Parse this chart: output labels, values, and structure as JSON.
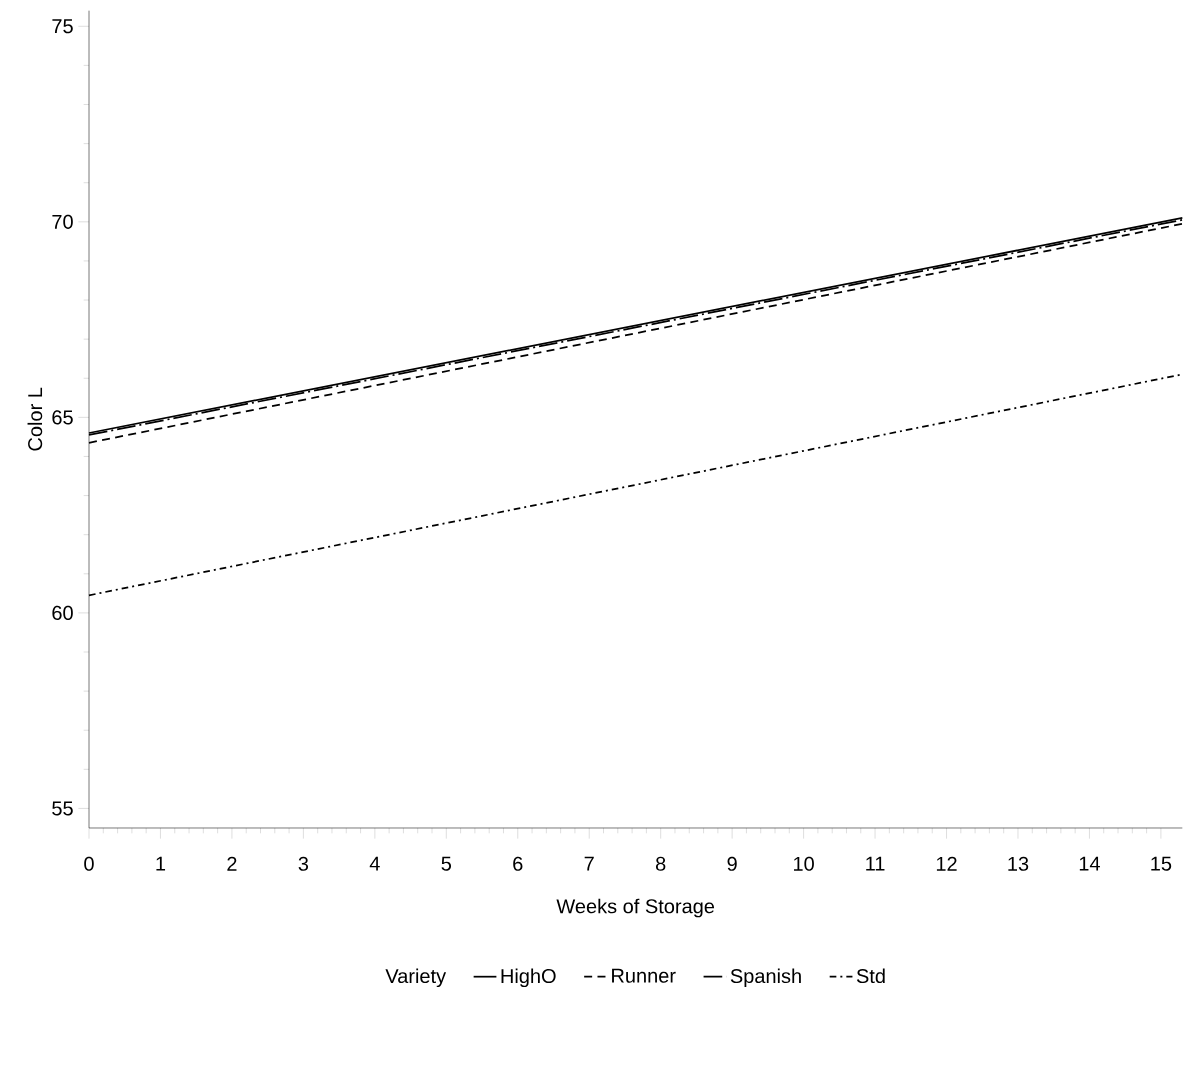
{
  "chart_data": {
    "type": "line",
    "xlabel": "Weeks of Storage",
    "ylabel": "Color L",
    "legend_title": "Variety",
    "legend": "bottom",
    "xlim": [
      0,
      15.3
    ],
    "xticks": [
      0,
      1,
      2,
      3,
      4,
      5,
      6,
      7,
      8,
      9,
      10,
      11,
      12,
      13,
      14,
      15
    ],
    "ylim": [
      54.5,
      75.4
    ],
    "yticks": [
      55,
      60,
      65,
      70,
      75
    ],
    "marker": "none",
    "x": [
      0,
      15.3
    ],
    "series": [
      {
        "name": "HighO",
        "color": "#000000",
        "line_style": "solid",
        "values": [
          64.6,
          70.1
        ]
      },
      {
        "name": "Runner",
        "color": "#000000",
        "line_style": "dashed",
        "values": [
          64.35,
          69.95
        ]
      },
      {
        "name": "Spanish",
        "color": "#000000",
        "line_style": "longdashdot",
        "values": [
          64.55,
          70.05
        ]
      },
      {
        "name": "Std",
        "color": "#000000",
        "line_style": "dashdot",
        "values": [
          60.45,
          66.1
        ]
      }
    ]
  }
}
